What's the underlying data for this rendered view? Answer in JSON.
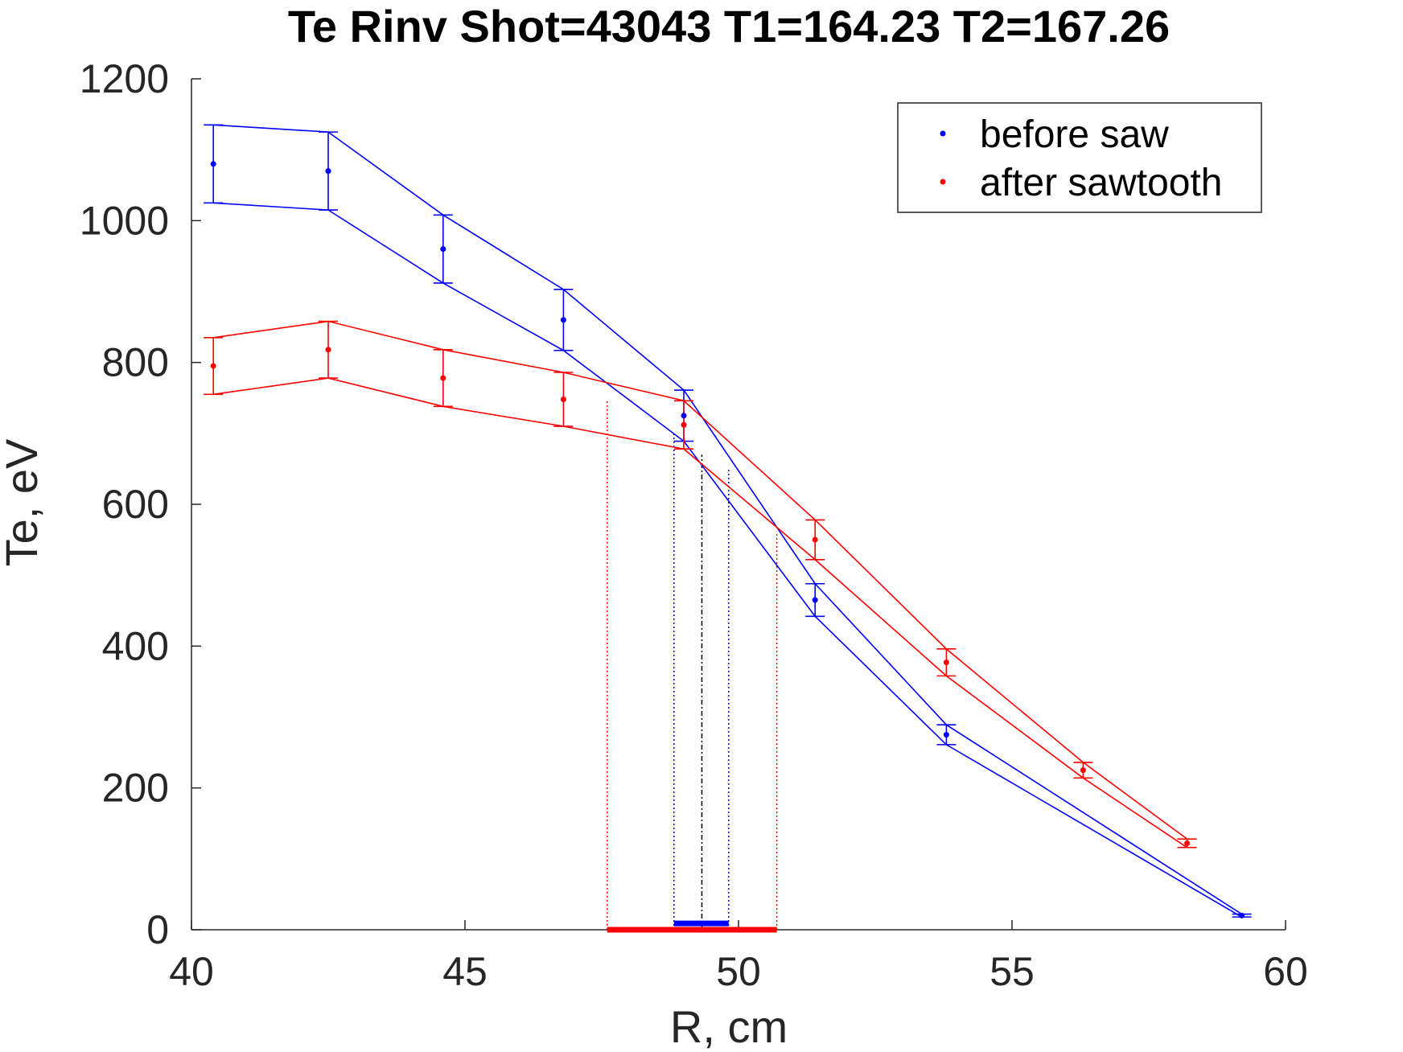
{
  "chart_data": {
    "type": "line",
    "title": "Te Rinv Shot=43043 T1=164.23 T2=167.26",
    "xlabel": "R, cm",
    "ylabel": "Te, eV",
    "xlim": [
      40,
      60
    ],
    "ylim": [
      0,
      1200
    ],
    "xticks": [
      "40",
      "45",
      "50",
      "55",
      "60"
    ],
    "yticks": [
      "0",
      "200",
      "400",
      "600",
      "800",
      "1000",
      "1200"
    ],
    "grid": false,
    "legend_position": "top-right",
    "series": [
      {
        "name": "before saw",
        "color": "#0000ff",
        "x": [
          40.4,
          42.5,
          44.6,
          46.8,
          49.0,
          51.4,
          53.8,
          59.2
        ],
        "y": [
          1080,
          1070,
          960,
          860,
          725,
          465,
          275,
          20
        ],
        "err": [
          55,
          55,
          48,
          43,
          36,
          23,
          14,
          2
        ]
      },
      {
        "name": "after sawtooth",
        "color": "#ff0000",
        "x": [
          40.4,
          42.5,
          44.6,
          46.8,
          49.0,
          51.4,
          53.8,
          56.3,
          58.2
        ],
        "y": [
          795,
          818,
          778,
          748,
          712,
          550,
          377,
          225,
          122
        ],
        "err": [
          40,
          40,
          40,
          38,
          34,
          28,
          19,
          11,
          6
        ]
      }
    ],
    "inversion_radius": {
      "center": 49.33,
      "before_range": [
        48.82,
        49.82
      ],
      "after_range": [
        47.6,
        50.7
      ]
    }
  }
}
